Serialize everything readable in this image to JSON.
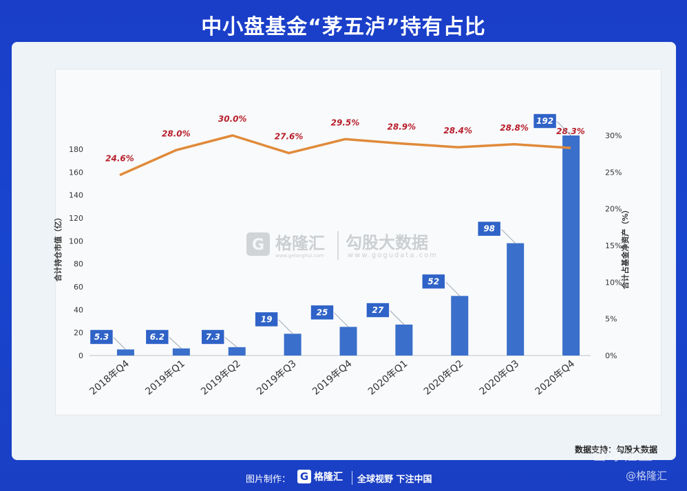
{
  "title": "中小盘基金“茅五泸”持有占比",
  "chart_data": {
    "type": "bar+line",
    "categories": [
      "2018年Q4",
      "2019年Q1",
      "2019年Q2",
      "2019年Q3",
      "2019年Q4",
      "2020年Q1",
      "2020年Q2",
      "2020年Q3",
      "2020年Q4"
    ],
    "bar_values": [
      5.3,
      6.2,
      7.3,
      19,
      25,
      27,
      52,
      98,
      192
    ],
    "bar_labels": [
      "5.3",
      "6.2",
      "7.3",
      "19",
      "25",
      "27",
      "52",
      "98",
      "192"
    ],
    "line_values": [
      24.6,
      28.0,
      30.0,
      27.6,
      29.5,
      28.9,
      28.4,
      28.8,
      28.3
    ],
    "line_labels": [
      "24.6%",
      "28.0%",
      "30.0%",
      "27.6%",
      "29.5%",
      "28.9%",
      "28.4%",
      "28.8%",
      "28.3%"
    ],
    "y_left": {
      "label": "合计持仓市值（亿）",
      "ticks": [
        0,
        20,
        40,
        60,
        80,
        100,
        120,
        140,
        160,
        180
      ],
      "range": [
        0,
        192
      ]
    },
    "y_right": {
      "label": "合计占基金净资产（%）",
      "ticks": [
        "0%",
        "5%",
        "10%",
        "15%",
        "20%",
        "25%",
        "30%"
      ],
      "range": [
        0,
        30
      ]
    },
    "colors": {
      "bar": "#3a6fcb",
      "line": "#e08a3a",
      "line_label": "#b81f2c",
      "callout_bg": "#2f63c7"
    }
  },
  "watermark": {
    "brand": "格隆汇",
    "brand_url": "www.gelonghui.com",
    "partner": "勾股大数据",
    "partner_url": "www.gogudata.com"
  },
  "source": "数据支持：勾股大数据",
  "footer": {
    "credit": "图片制作：",
    "logo_letter": "G",
    "logo_text": "格隆汇",
    "slogan": "全球视野 下注中国"
  },
  "overlay": {
    "community": "雪球社区",
    "brand_handle": "@格隆汇"
  }
}
